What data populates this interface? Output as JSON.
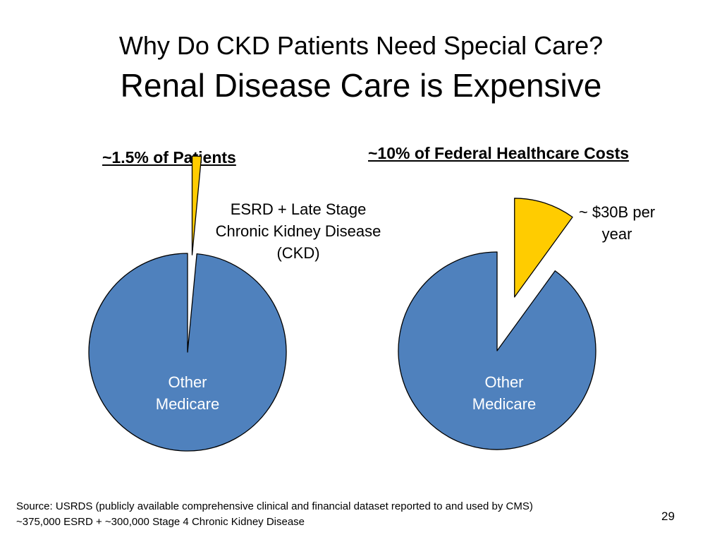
{
  "title": "Why Do CKD Patients Need Special Care?",
  "subtitle": "Renal Disease Care is Expensive",
  "chart_data": [
    {
      "type": "pie",
      "title": "~1.5% of Patients",
      "labels": [
        "ESRD + Late Stage Chronic Kidney Disease (CKD)",
        "Other Medicare"
      ],
      "values": [
        1.5,
        98.5
      ],
      "colors": [
        "#FFCC00",
        "#4F81BD"
      ],
      "exploded": [
        "ESRD + Late Stage Chronic Kidney Disease (CKD)"
      ]
    },
    {
      "type": "pie",
      "title": "~10% of  Federal Healthcare Costs",
      "labels": [
        "~ $30B per year",
        "Other Medicare"
      ],
      "values": [
        10,
        90
      ],
      "colors": [
        "#FFCC00",
        "#4F81BD"
      ],
      "exploded": [
        "~ $30B per year"
      ]
    }
  ],
  "labels": {
    "left_slice": "ESRD + Late Stage Chronic Kidney Disease (CKD)",
    "left_other": "Other Medicare",
    "right_slice": "~ $30B per year",
    "right_other": "Other Medicare"
  },
  "footer": {
    "line1": "Source: USRDS (publicly available comprehensive clinical and financial dataset reported to and used by CMS)",
    "line2": "~375,000 ESRD  +  ~300,000 Stage 4 Chronic Kidney Disease"
  },
  "page_number": "29"
}
